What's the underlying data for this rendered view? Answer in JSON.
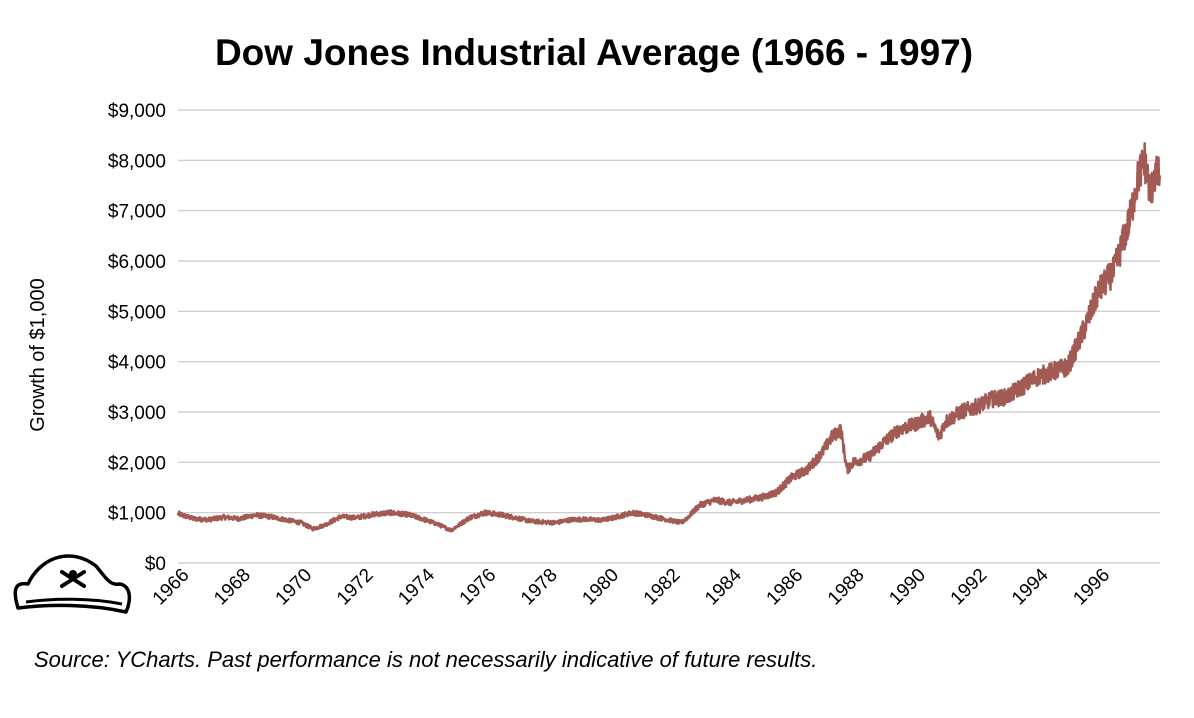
{
  "chart_data": {
    "type": "line",
    "title": "Dow Jones Industrial Average (1966 - 1997)",
    "ylabel": "Growth of $1,000",
    "xlabel": "",
    "source": "Source: YCharts. Past performance is not necessarily indicative of future results.",
    "xlim": [
      1966,
      1998
    ],
    "ylim": [
      0,
      9000
    ],
    "x_ticks": [
      "1966",
      "1968",
      "1970",
      "1972",
      "1974",
      "1976",
      "1978",
      "1980",
      "1982",
      "1984",
      "1986",
      "1988",
      "1990",
      "1992",
      "1994",
      "1996"
    ],
    "y_ticks": [
      "$0",
      "$1,000",
      "$2,000",
      "$3,000",
      "$4,000",
      "$5,000",
      "$6,000",
      "$7,000",
      "$8,000",
      "$9,000"
    ],
    "grid": "horizontal",
    "line_color": "#a25a55",
    "series": [
      {
        "x": [
          1966.0,
          1966.5,
          1967.0,
          1967.5,
          1968.0,
          1968.5,
          1969.0,
          1969.5,
          1970.0,
          1970.4,
          1970.8,
          1971.3,
          1971.8,
          1972.3,
          1972.9,
          1973.5,
          1974.0,
          1974.5,
          1974.9,
          1975.5,
          1976.0,
          1976.5,
          1977.0,
          1977.5,
          1978.0,
          1978.3,
          1978.8,
          1979.3,
          1979.8,
          1980.2,
          1980.8,
          1981.3,
          1981.8,
          1982.4,
          1982.6,
          1983.0,
          1983.5,
          1984.0,
          1984.5,
          1985.0,
          1985.5,
          1986.0,
          1986.5,
          1987.0,
          1987.3,
          1987.6,
          1987.8,
          1988.0,
          1988.5,
          1989.0,
          1989.5,
          1990.0,
          1990.5,
          1990.8,
          1991.0,
          1991.5,
          1992.0,
          1992.5,
          1993.0,
          1993.5,
          1994.0,
          1994.5,
          1995.0,
          1995.5,
          1996.0,
          1996.5,
          1997.0,
          1997.3,
          1997.5,
          1997.7,
          1997.8,
          1998.0
        ],
        "y": [
          980,
          880,
          860,
          910,
          880,
          950,
          920,
          860,
          800,
          680,
          760,
          920,
          900,
          960,
          1000,
          960,
          870,
          760,
          650,
          900,
          1000,
          960,
          900,
          830,
          810,
          800,
          860,
          870,
          850,
          900,
          1000,
          950,
          880,
          800,
          900,
          1150,
          1250,
          1200,
          1250,
          1300,
          1400,
          1700,
          1850,
          2200,
          2500,
          2650,
          1850,
          2000,
          2100,
          2400,
          2650,
          2750,
          2900,
          2500,
          2800,
          3000,
          3100,
          3250,
          3300,
          3500,
          3700,
          3800,
          3900,
          4600,
          5400,
          5800,
          6800,
          7700,
          8000,
          7300,
          7700,
          7700
        ]
      }
    ],
    "logo": "pirate-hat-icon"
  }
}
